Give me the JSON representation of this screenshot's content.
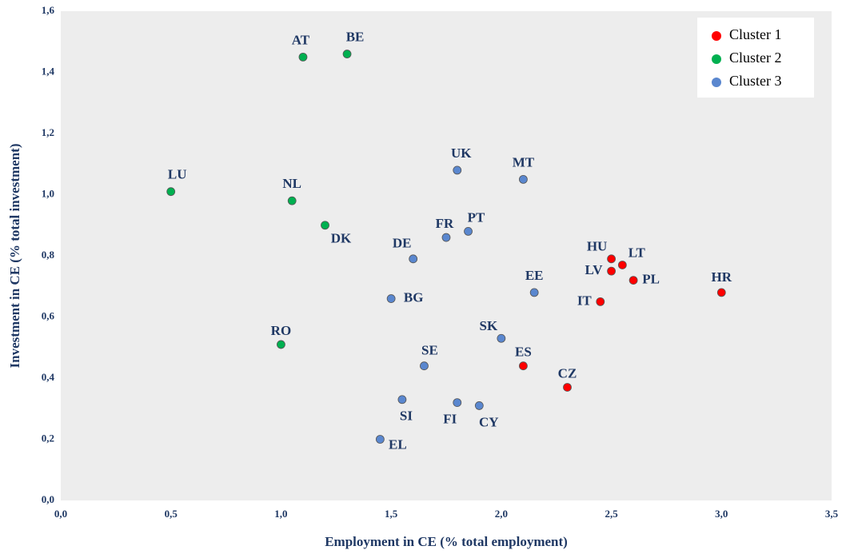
{
  "chart_data": {
    "type": "scatter",
    "x_label": "Employment in CE (% total employment)",
    "y_label": "Investment in CE (% total investment)",
    "xlim": [
      0,
      3.5
    ],
    "ylim": [
      0,
      1.6
    ],
    "xticks": [
      {
        "value": 0,
        "label": "0,0"
      },
      {
        "value": 0.5,
        "label": "0,5"
      },
      {
        "value": 1,
        "label": "1,0"
      },
      {
        "value": 1.5,
        "label": "1,5"
      },
      {
        "value": 2,
        "label": "2,0"
      },
      {
        "value": 2.5,
        "label": "2,5"
      },
      {
        "value": 3,
        "label": "3,0"
      },
      {
        "value": 3.5,
        "label": "3,5"
      }
    ],
    "yticks": [
      {
        "value": 0,
        "label": "0,0"
      },
      {
        "value": 0.2,
        "label": "0,2"
      },
      {
        "value": 0.4,
        "label": "0,4"
      },
      {
        "value": 0.6,
        "label": "0,6"
      },
      {
        "value": 0.8,
        "label": "0,8"
      },
      {
        "value": 1,
        "label": "1,0"
      },
      {
        "value": 1.2,
        "label": "1,2"
      },
      {
        "value": 1.4,
        "label": "1,4"
      },
      {
        "value": 1.6,
        "label": "1,6"
      }
    ],
    "grid": false,
    "legend": "top-right",
    "series": [
      {
        "name": "Cluster 1",
        "color": "#ff0000",
        "labels": [
          "HU",
          "LT",
          "LV",
          "PL",
          "HR",
          "IT",
          "ES",
          "CZ"
        ],
        "x": [
          2.5,
          2.55,
          2.5,
          2.6,
          3.0,
          2.45,
          2.1,
          2.3
        ],
        "values": [
          0.79,
          0.77,
          0.75,
          0.72,
          0.68,
          0.65,
          0.44,
          0.37
        ]
      },
      {
        "name": "Cluster 2",
        "color": "#00b050",
        "labels": [
          "AT",
          "BE",
          "LU",
          "NL",
          "DK",
          "RO"
        ],
        "x": [
          1.1,
          1.3,
          0.5,
          1.05,
          1.2,
          1.0
        ],
        "values": [
          1.45,
          1.46,
          1.01,
          0.98,
          0.9,
          0.51
        ]
      },
      {
        "name": "Cluster 3",
        "color": "#5a87cf",
        "labels": [
          "UK",
          "MT",
          "FR",
          "PT",
          "DE",
          "BG",
          "EE",
          "SK",
          "SE",
          "SI",
          "FI",
          "CY",
          "EL"
        ],
        "x": [
          1.8,
          2.1,
          1.75,
          1.85,
          1.6,
          1.5,
          2.15,
          2.0,
          1.65,
          1.55,
          1.8,
          1.9,
          1.45
        ],
        "values": [
          1.08,
          1.05,
          0.86,
          0.88,
          0.79,
          0.66,
          0.68,
          0.53,
          0.44,
          0.33,
          0.32,
          0.31,
          0.2
        ]
      }
    ]
  }
}
